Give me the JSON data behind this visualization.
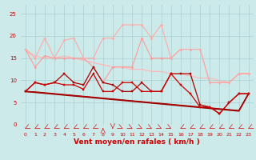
{
  "background_color": "#cceaea",
  "grid_color": "#aad0d0",
  "xlabel": "Vent moyen/en rafales ( km/h )",
  "xlabel_color": "#cc0000",
  "xlabel_fontsize": 6.5,
  "xtick_color": "#cc0000",
  "ytick_color": "#cc0000",
  "ylim": [
    0,
    27
  ],
  "xlim": [
    -0.5,
    23.5
  ],
  "yticks": [
    0,
    5,
    10,
    15,
    20,
    25
  ],
  "xticks": [
    0,
    1,
    2,
    3,
    4,
    5,
    6,
    7,
    8,
    9,
    10,
    11,
    12,
    13,
    14,
    15,
    16,
    17,
    18,
    19,
    20,
    21,
    22,
    23
  ],
  "series": [
    {
      "y": [
        17.0,
        15.5,
        15.0,
        15.0,
        15.5,
        15.0,
        14.5,
        14.0,
        13.5,
        13.0,
        13.0,
        12.5,
        12.5,
        12.0,
        12.0,
        11.5,
        11.5,
        11.0,
        10.5,
        10.5,
        10.0,
        9.5,
        11.5,
        11.5
      ],
      "color": "#ffbbbb",
      "lw": 1.0,
      "marker": null,
      "ms": 0,
      "zorder": 1,
      "linestyle": "-"
    },
    {
      "y": [
        17.0,
        13.0,
        15.5,
        15.0,
        15.0,
        15.0,
        15.0,
        13.0,
        9.5,
        13.0,
        13.0,
        13.0,
        19.5,
        15.0,
        15.0,
        15.0,
        17.0,
        17.0,
        17.0,
        9.5,
        9.5,
        9.5,
        11.5,
        11.5
      ],
      "color": "#ff9999",
      "lw": 0.8,
      "marker": "D",
      "ms": 1.5,
      "zorder": 2
    },
    {
      "y": [
        17.0,
        15.0,
        19.5,
        15.0,
        19.0,
        19.5,
        15.0,
        15.0,
        19.5,
        19.5,
        22.5,
        22.5,
        22.5,
        19.5,
        22.5,
        15.0,
        17.0,
        17.0,
        17.0,
        9.5,
        9.5,
        9.5,
        11.5,
        11.5
      ],
      "color": "#ffaaaa",
      "lw": 0.8,
      "marker": "D",
      "ms": 1.5,
      "zorder": 2
    },
    {
      "y": [
        7.5,
        7.3,
        7.1,
        6.9,
        6.7,
        6.5,
        6.3,
        6.1,
        5.9,
        5.7,
        5.5,
        5.3,
        5.1,
        4.9,
        4.7,
        4.5,
        4.3,
        4.1,
        3.9,
        3.7,
        3.5,
        3.3,
        3.1,
        7.0
      ],
      "color": "#990000",
      "lw": 1.2,
      "marker": null,
      "ms": 0,
      "zorder": 3,
      "linestyle": "-"
    },
    {
      "y": [
        7.5,
        7.4,
        7.2,
        7.0,
        6.8,
        6.6,
        6.4,
        6.2,
        6.0,
        5.8,
        5.6,
        5.4,
        5.2,
        5.0,
        4.8,
        4.6,
        4.4,
        4.2,
        4.0,
        3.8,
        3.6,
        3.4,
        3.2,
        7.0
      ],
      "color": "#aa0000",
      "lw": 1.0,
      "marker": null,
      "ms": 0,
      "zorder": 3,
      "linestyle": "-"
    },
    {
      "y": [
        7.5,
        9.5,
        9.0,
        9.5,
        9.0,
        9.0,
        8.0,
        11.5,
        7.5,
        7.5,
        9.5,
        9.5,
        7.5,
        7.5,
        7.5,
        11.5,
        9.0,
        7.0,
        4.0,
        4.0,
        2.5,
        5.0,
        7.0,
        7.0
      ],
      "color": "#cc0000",
      "lw": 0.9,
      "marker": "s",
      "ms": 1.8,
      "zorder": 5
    },
    {
      "y": [
        7.5,
        9.5,
        9.0,
        9.5,
        11.5,
        9.5,
        9.0,
        13.0,
        9.5,
        9.0,
        7.5,
        7.5,
        9.5,
        7.5,
        7.5,
        11.5,
        11.5,
        11.5,
        4.5,
        4.0,
        2.5,
        5.0,
        7.0,
        7.0
      ],
      "color": "#aa0000",
      "lw": 0.9,
      "marker": "s",
      "ms": 1.8,
      "zorder": 4
    }
  ],
  "wind_arrow_angles": [
    225,
    225,
    225,
    225,
    225,
    225,
    225,
    225,
    90,
    270,
    315,
    315,
    315,
    315,
    315,
    315,
    225,
    225,
    225,
    225,
    225,
    225,
    225,
    225
  ],
  "arrow_color": "#cc3333"
}
